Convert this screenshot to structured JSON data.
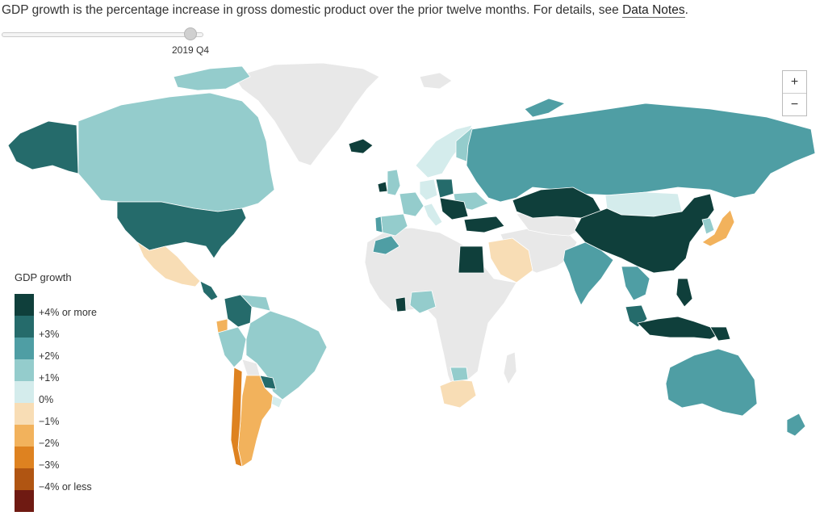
{
  "caption": {
    "text": "GDP growth is the percentage increase in gross domestic product over the prior twelve months. For details, see ",
    "link": "Data Notes",
    "tail": "."
  },
  "slider": {
    "label": "2019 Q4"
  },
  "zoom": {
    "in": "+",
    "out": "−"
  },
  "legend": {
    "title": "GDP growth",
    "labels": [
      "+4% or more",
      "+3%",
      "+2%",
      "+1%",
      "0%",
      "−1%",
      "−2%",
      "−3%",
      "−4% or less"
    ],
    "colors": [
      "#0f3f3b",
      "#256b6b",
      "#4f9ea4",
      "#94cccc",
      "#d4ecec",
      "#f8ddb5",
      "#f2b25c",
      "#de8220",
      "#b05512",
      "#6f1a12"
    ]
  },
  "colors": {
    "nodata": "#e8e8e8",
    "border": "#ffffff"
  }
}
